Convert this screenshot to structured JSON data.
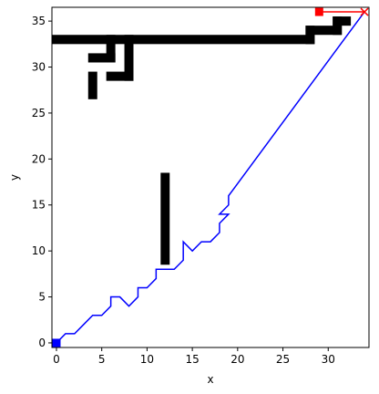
{
  "chart_data": {
    "type": "line",
    "xlabel": "x",
    "ylabel": "y",
    "xlim": [
      -0.5,
      34.5
    ],
    "ylim": [
      -0.5,
      36.5
    ],
    "xticks": [
      0,
      5,
      10,
      15,
      20,
      25,
      30
    ],
    "yticks": [
      0,
      5,
      10,
      15,
      20,
      25,
      30,
      35
    ],
    "grid": false,
    "obstacle_color": "#000000",
    "obstacles": [
      [
        0,
        33,
        33
      ],
      [
        6,
        30.5,
        33
      ],
      [
        4,
        31,
        6
      ],
      [
        8,
        29,
        32.5
      ],
      [
        7,
        29,
        8
      ],
      [
        4,
        27,
        29
      ],
      [
        12,
        9,
        18
      ],
      [
        28,
        33,
        34
      ],
      [
        28,
        34,
        31
      ],
      [
        30,
        35,
        32
      ],
      [
        31,
        35.5,
        33
      ]
    ],
    "series": [
      {
        "color": "#0000ff",
        "points": [
          [
            0,
            0
          ],
          [
            1,
            1
          ],
          [
            2,
            1
          ],
          [
            3,
            2
          ],
          [
            4,
            3
          ],
          [
            5,
            3
          ],
          [
            6,
            4
          ],
          [
            6,
            5
          ],
          [
            7,
            5
          ],
          [
            8,
            4
          ],
          [
            9,
            5
          ],
          [
            9,
            6
          ],
          [
            10,
            6
          ],
          [
            11,
            7
          ],
          [
            11,
            8
          ],
          [
            12,
            8
          ],
          [
            13,
            8
          ],
          [
            14,
            9
          ],
          [
            14,
            11
          ],
          [
            15,
            10
          ],
          [
            16,
            11
          ],
          [
            17,
            11
          ],
          [
            18,
            12
          ],
          [
            18,
            13
          ],
          [
            19,
            14
          ],
          [
            18,
            14
          ],
          [
            19,
            15
          ],
          [
            19,
            16
          ],
          [
            34,
            36
          ]
        ]
      },
      {
        "color": "#ff0000",
        "points": [
          [
            29,
            36
          ],
          [
            34,
            36
          ]
        ]
      }
    ],
    "markers": [
      {
        "x": 0,
        "y": 0,
        "color": "#0000ff"
      },
      {
        "x": 29,
        "y": 36,
        "color": "#ff0000"
      }
    ]
  }
}
